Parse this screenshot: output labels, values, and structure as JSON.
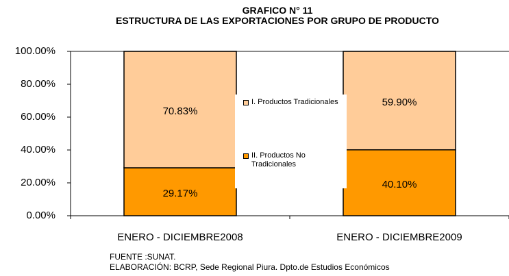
{
  "chart_data": {
    "type": "stacked_bar",
    "title": "GRAFICO N° 11",
    "subtitle": "ESTRUCTURA DE LAS EXPORTACIONES POR GRUPO DE PRODUCTO",
    "categories": [
      "ENERO - DICIEMBRE2008",
      "ENERO - DICIEMBRE2009"
    ],
    "series": [
      {
        "name": "II. Productos No Tradicionales",
        "color": "#FF9900",
        "values": [
          29.17,
          40.1
        ],
        "value_labels": [
          "29.17%",
          "40.10%"
        ]
      },
      {
        "name": "I. Productos Tradicionales",
        "color": "#FFCC99",
        "values": [
          70.83,
          59.9
        ],
        "value_labels": [
          "70.83%",
          "59.90%"
        ]
      }
    ],
    "ylim": [
      0,
      100
    ],
    "yticks": [
      {
        "value": 0,
        "label": "0.00%"
      },
      {
        "value": 20,
        "label": "20.00%"
      },
      {
        "value": 40,
        "label": "40.00%"
      },
      {
        "value": 60,
        "label": "60.00%"
      },
      {
        "value": 80,
        "label": "80.00%"
      },
      {
        "value": 100,
        "label": "100.00%"
      }
    ],
    "legend": "center",
    "notes": [
      "FUENTE :SUNAT.",
      "ELABORACIÓN: BCRP, Sede Regional Piura. Dpto.de Estudios Económicos"
    ]
  }
}
